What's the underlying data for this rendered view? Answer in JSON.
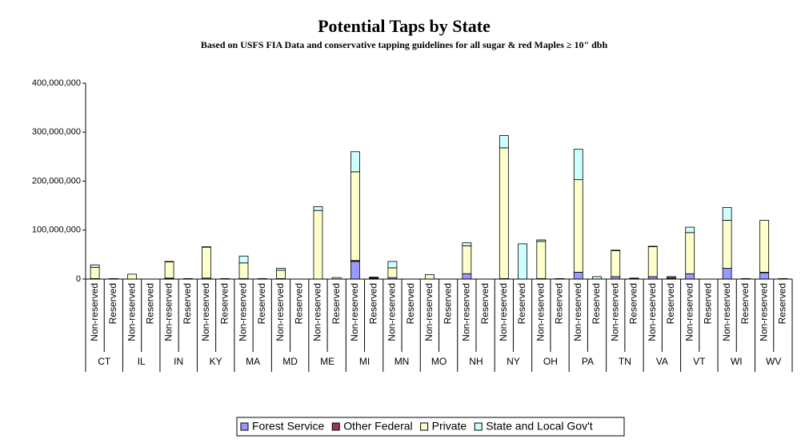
{
  "chart_data": {
    "type": "stacked_bar",
    "title": "Potential Taps by State",
    "subtitle": "Based on USFS FIA Data and conservative tapping guidelines for all sugar & red Maples ≥ 10\" dbh",
    "categories": [
      "Non-reserved",
      "Reserved",
      "Non-reserved",
      "Reserved",
      "Non-reserved",
      "Reserved",
      "Non-reserved",
      "Reserved",
      "Non-reserved",
      "Reserved",
      "Non-reserved",
      "Reserved",
      "Non-reserved",
      "Reserved",
      "Non-reserved",
      "Reserved",
      "Non-reserved",
      "Reserved",
      "Non-reserved",
      "Reserved",
      "Non-reserved",
      "Reserved",
      "Non-reserved",
      "Reserved",
      "Non-reserved",
      "Reserved",
      "Non-reserved",
      "Reserved",
      "Non-reserved",
      "Reserved",
      "Non-reserved",
      "Reserved",
      "Non-reserved",
      "Reserved",
      "Non-reserved",
      "Reserved",
      "Non-reserved",
      "Reserved"
    ],
    "groups": [
      "CT",
      "IL",
      "IN",
      "KY",
      "MA",
      "MD",
      "ME",
      "MI",
      "MN",
      "MO",
      "NH",
      "NY",
      "OH",
      "PA",
      "TN",
      "VA",
      "VT",
      "WI",
      "WV"
    ],
    "series": [
      {
        "name": "Forest Service",
        "color": "#9999ff",
        "values": [
          1000000,
          0,
          0,
          0,
          1000000,
          0,
          2000000,
          0,
          1000000,
          0,
          1000000,
          0,
          0,
          0,
          36000000,
          1000000,
          3000000,
          0,
          0,
          0,
          11000000,
          0,
          1000000,
          0,
          1000000,
          0,
          14000000,
          0,
          5000000,
          1000000,
          5000000,
          1000000,
          11000000,
          0,
          22000000,
          0,
          13000000,
          0
        ]
      },
      {
        "name": "Other Federal",
        "color": "#993366",
        "values": [
          0,
          0,
          0,
          0,
          1000000,
          0,
          0,
          0,
          0,
          0,
          0,
          0,
          0,
          0,
          2000000,
          2000000,
          0,
          0,
          0,
          0,
          0,
          0,
          0,
          0,
          0,
          0,
          0,
          0,
          0,
          0,
          0,
          4000000,
          0,
          0,
          0,
          0,
          1000000,
          0
        ]
      },
      {
        "name": "Private",
        "color": "#ffffcc",
        "values": [
          23000000,
          1000000,
          10000000,
          0,
          33000000,
          1000000,
          63000000,
          1000000,
          32000000,
          1000000,
          17000000,
          0,
          140000000,
          0,
          181000000,
          1000000,
          20000000,
          0,
          9000000,
          0,
          57000000,
          0,
          267000000,
          0,
          76000000,
          1000000,
          189000000,
          0,
          53000000,
          1000000,
          61000000,
          0,
          84000000,
          0,
          98000000,
          1000000,
          106000000,
          1000000
        ]
      },
      {
        "name": "State and Local Gov't",
        "color": "#ccffff",
        "values": [
          5000000,
          0,
          0,
          0,
          1000000,
          0,
          1000000,
          0,
          14000000,
          0,
          4000000,
          0,
          8000000,
          3000000,
          41000000,
          0,
          13000000,
          0,
          0,
          0,
          6000000,
          0,
          25000000,
          72000000,
          3000000,
          0,
          62000000,
          5000000,
          1000000,
          0,
          1000000,
          0,
          11000000,
          0,
          26000000,
          0,
          0,
          0
        ]
      }
    ],
    "ylim": [
      0,
      400000000
    ],
    "yticks": [
      0,
      {
        "value": 100000000,
        "label": "100,000,000"
      },
      {
        "value": 200000000,
        "label": "200,000,000"
      },
      {
        "value": 300000000,
        "label": "300,000,000"
      },
      {
        "value": 400000000,
        "label": "400,000,000"
      }
    ],
    "legend": "bottom"
  }
}
